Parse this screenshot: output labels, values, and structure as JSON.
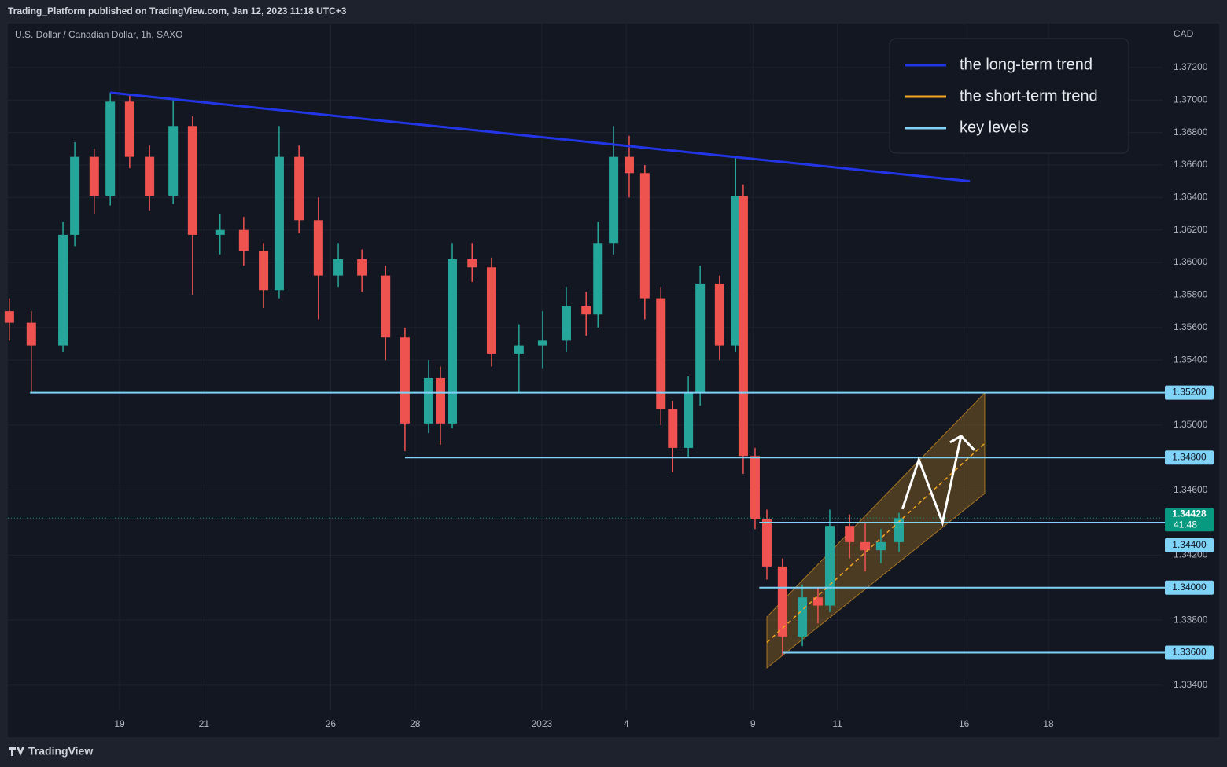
{
  "header": {
    "published": "Trading_Platform published on TradingView.com, Jan 12, 2023 11:18 UTC+3"
  },
  "chart_data": {
    "type": "candlestick",
    "title": "U.S. Dollar / Canadian Dollar, 1h, SAXO",
    "y_axis_label": "CAD",
    "x": [
      -2.61,
      -2.09,
      -1.34,
      -1.06,
      -0.6,
      -0.22,
      0.24,
      0.71,
      1.27,
      1.73,
      2.38,
      2.94,
      3.41,
      3.78,
      4.25,
      4.71,
      5.18,
      5.74,
      6.3,
      6.76,
      7.32,
      7.6,
      7.88,
      8.35,
      8.81,
      9.46,
      10.02,
      10.58,
      11.05,
      11.33,
      11.7,
      12.07,
      12.44,
      12.82,
      13.1,
      13.47,
      13.75,
      14.21,
      14.59,
      14.77,
      15.05,
      15.33,
      15.7,
      16.17,
      16.54,
      16.82,
      17.29,
      17.66,
      18.03,
      18.46
    ],
    "open": [
      1.357,
      1.3563,
      1.3549,
      1.3617,
      1.3665,
      1.3641,
      1.3699,
      1.3665,
      1.3641,
      1.3684,
      1.3617,
      1.362,
      1.3607,
      1.3583,
      1.3665,
      1.3626,
      1.3592,
      1.3602,
      1.3592,
      1.3554,
      1.3501,
      1.3529,
      1.3501,
      1.3602,
      1.3597,
      1.3544,
      1.3549,
      1.3552,
      1.3573,
      1.3568,
      1.3612,
      1.3665,
      1.3655,
      1.3578,
      1.351,
      1.3486,
      1.352,
      1.3587,
      1.3549,
      1.3641,
      1.3481,
      1.3442,
      1.3413,
      1.337,
      1.3394,
      1.3389,
      1.3438,
      1.3428,
      1.3423,
      1.3428
    ],
    "high": [
      1.3578,
      1.357,
      1.3625,
      1.3674,
      1.367,
      1.37045,
      1.3703,
      1.3672,
      1.37,
      1.369,
      1.363,
      1.3628,
      1.3612,
      1.3684,
      1.3672,
      1.364,
      1.3612,
      1.3608,
      1.3598,
      1.356,
      1.354,
      1.3536,
      1.3612,
      1.3612,
      1.3603,
      1.3562,
      1.357,
      1.3585,
      1.3582,
      1.3625,
      1.3684,
      1.3678,
      1.366,
      1.3585,
      1.3515,
      1.353,
      1.3598,
      1.3592,
      1.3665,
      1.3648,
      1.3486,
      1.3448,
      1.3418,
      1.3402,
      1.34,
      1.3448,
      1.3445,
      1.344,
      1.3436,
      1.3446
    ],
    "low": [
      1.3552,
      1.352,
      1.3545,
      1.361,
      1.363,
      1.3635,
      1.3658,
      1.3632,
      1.3636,
      1.358,
      1.3605,
      1.3598,
      1.3572,
      1.3578,
      1.3618,
      1.3565,
      1.3585,
      1.3582,
      1.354,
      1.3484,
      1.3495,
      1.3488,
      1.3498,
      1.3588,
      1.3536,
      1.352,
      1.3535,
      1.3545,
      1.3555,
      1.356,
      1.3605,
      1.364,
      1.3565,
      1.35,
      1.3471,
      1.348,
      1.3512,
      1.354,
      1.3545,
      1.347,
      1.3436,
      1.3405,
      1.3358,
      1.3364,
      1.3378,
      1.3385,
      1.3418,
      1.341,
      1.3415,
      1.3422
    ],
    "close": [
      1.3563,
      1.3549,
      1.3617,
      1.3665,
      1.3641,
      1.3699,
      1.3665,
      1.3641,
      1.3684,
      1.3617,
      1.362,
      1.3607,
      1.3583,
      1.3665,
      1.3626,
      1.3592,
      1.3602,
      1.3592,
      1.3554,
      1.3501,
      1.3529,
      1.3501,
      1.3602,
      1.3597,
      1.3544,
      1.3549,
      1.3552,
      1.3573,
      1.3568,
      1.3612,
      1.3665,
      1.3655,
      1.3578,
      1.351,
      1.3486,
      1.352,
      1.3587,
      1.3549,
      1.3641,
      1.3481,
      1.3442,
      1.3413,
      1.337,
      1.3394,
      1.3389,
      1.3438,
      1.3428,
      1.3423,
      1.3428,
      1.34428
    ],
    "up_color": "#26a69a",
    "down_color": "#ef5350",
    "xlim": [
      -2.645,
      24.7
    ],
    "ylim": [
      1.3324,
      1.3747
    ],
    "xticks": [
      {
        "value": 0,
        "label": "19"
      },
      {
        "value": 2,
        "label": "21"
      },
      {
        "value": 5,
        "label": "26"
      },
      {
        "value": 7,
        "label": "28"
      },
      {
        "value": 10,
        "label": "2023"
      },
      {
        "value": 12,
        "label": "4"
      },
      {
        "value": 15,
        "label": "9"
      },
      {
        "value": 17,
        "label": "11"
      },
      {
        "value": 20,
        "label": "16"
      },
      {
        "value": 22,
        "label": "18"
      }
    ],
    "yticks": [
      {
        "value": 1.372,
        "label": "1.37200"
      },
      {
        "value": 1.37,
        "label": "1.37000"
      },
      {
        "value": 1.368,
        "label": "1.36800"
      },
      {
        "value": 1.366,
        "label": "1.36600"
      },
      {
        "value": 1.364,
        "label": "1.36400"
      },
      {
        "value": 1.362,
        "label": "1.36200"
      },
      {
        "value": 1.36,
        "label": "1.36000"
      },
      {
        "value": 1.358,
        "label": "1.35800"
      },
      {
        "value": 1.356,
        "label": "1.35600"
      },
      {
        "value": 1.354,
        "label": "1.35400"
      },
      {
        "value": 1.35,
        "label": "1.35000"
      },
      {
        "value": 1.346,
        "label": "1.34600"
      },
      {
        "value": 1.342,
        "label": "1.34200"
      },
      {
        "value": 1.338,
        "label": "1.33800"
      },
      {
        "value": 1.334,
        "label": "1.33400"
      }
    ],
    "grid": true,
    "last_price": {
      "value": 1.34428,
      "label": "1.34428",
      "countdown": "41:48",
      "color": "#089981"
    },
    "key_level_color": "#7fd3f7",
    "key_levels": [
      {
        "value": 1.352,
        "label": "1.35200",
        "start": -2.12
      },
      {
        "value": 1.348,
        "label": "1.34800",
        "start": 6.76
      },
      {
        "value": 1.344,
        "label": "1.34400",
        "start": 15.15
      },
      {
        "value": 1.34,
        "label": "1.34000",
        "start": 15.15
      },
      {
        "value": 1.336,
        "label": "1.33600",
        "start": 15.7
      }
    ],
    "long_term_trend": {
      "x": [
        -0.22,
        20.14
      ],
      "y": [
        1.37045,
        1.365
      ],
      "color": "#2236e8"
    },
    "channel": {
      "x": [
        15.33,
        20.49
      ],
      "upper": [
        1.3382,
        1.35198
      ],
      "lower": [
        1.33506,
        1.34579
      ],
      "color": "#f5a623"
    },
    "projection": {
      "x": [
        18.54,
        18.93,
        19.49,
        19.93
      ],
      "y": [
        1.34483,
        1.34788,
        1.34401,
        1.34933
      ],
      "color": "#ffffff"
    },
    "legend": {
      "position": "top-right",
      "items": [
        {
          "name": "the long-term trend",
          "color": "#2236e8"
        },
        {
          "name": "the short-term trend",
          "color": "#f5a623"
        },
        {
          "name": "key levels",
          "color": "#7fd3f7"
        }
      ]
    }
  },
  "footer": {
    "brand": "TradingView"
  }
}
